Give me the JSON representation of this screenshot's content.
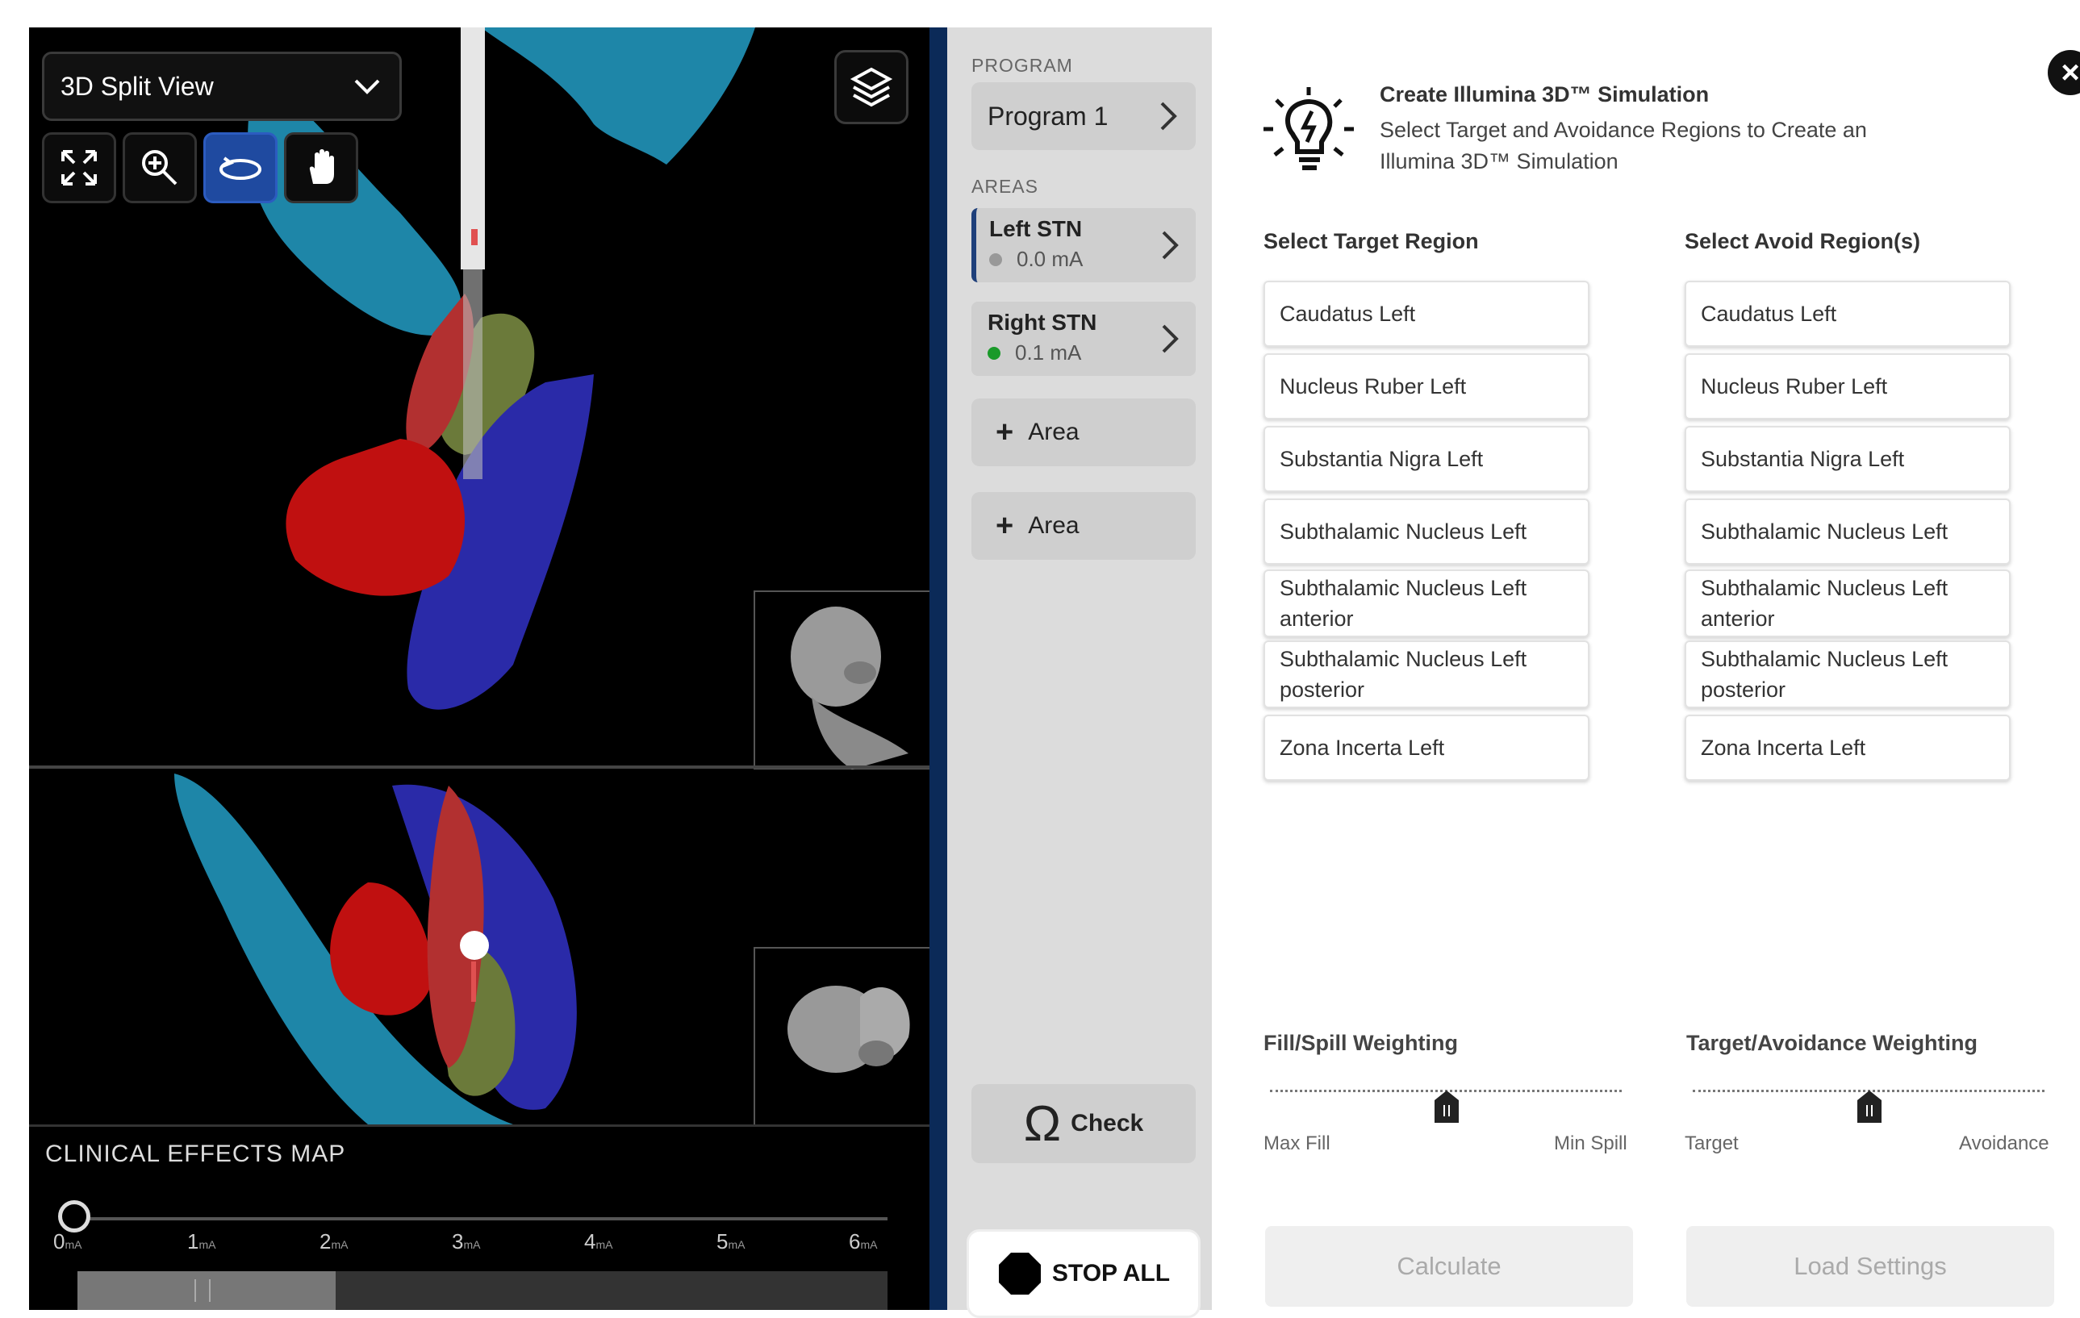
{
  "viewer": {
    "view_mode": "3D Split View",
    "tools": [
      {
        "icon": "fit-to-screen-icon",
        "active": false
      },
      {
        "icon": "zoom-icon",
        "active": false
      },
      {
        "icon": "rotate-icon",
        "active": true
      },
      {
        "icon": "pan-hand-icon",
        "active": false
      }
    ],
    "layers_icon": "layers-icon",
    "clinical_effects": {
      "title": "CLINICAL EFFECTS MAP",
      "ticks": [
        {
          "n": "0",
          "u": "mA"
        },
        {
          "n": "1",
          "u": "mA"
        },
        {
          "n": "2",
          "u": "mA"
        },
        {
          "n": "3",
          "u": "mA"
        },
        {
          "n": "4",
          "u": "mA"
        },
        {
          "n": "5",
          "u": "mA"
        },
        {
          "n": "6",
          "u": "mA"
        }
      ],
      "slider_value_mA": 0
    },
    "colors": {
      "structure_red": "#c01010",
      "structure_blue": "#2a2aa8",
      "structure_teal": "#1e86a8",
      "structure_green": "#6b7a3a"
    }
  },
  "sidebar": {
    "program_label": "PROGRAM",
    "program_name": "Program 1",
    "areas_label": "AREAS",
    "areas": [
      {
        "name": "Left STN",
        "value": "0.0 mA",
        "status_color": "#999999",
        "selected": true
      },
      {
        "name": "Right STN",
        "value": "0.1 mA",
        "status_color": "#1a9a2a",
        "selected": false
      }
    ],
    "add_area_buttons": [
      "Area",
      "Area"
    ],
    "check_label": "Check",
    "stop_label": "STOP ALL"
  },
  "panel": {
    "title": "Create Illumina 3D™ Simulation",
    "subtitle": "Select Target and Avoidance Regions to Create an Illumina 3D™ Simulation",
    "target_header": "Select Target Region",
    "avoid_header": "Select Avoid Region(s)",
    "target_regions": [
      "Caudatus Left",
      "Nucleus Ruber Left",
      "Substantia Nigra Left",
      "Subthalamic Nucleus Left",
      "Subthalamic Nucleus Left anterior",
      "Subthalamic Nucleus Left posterior",
      "Zona Incerta Left"
    ],
    "avoid_regions": [
      "Caudatus Left",
      "Nucleus Ruber Left",
      "Substantia Nigra Left",
      "Subthalamic Nucleus Left",
      "Subthalamic Nucleus Left anterior",
      "Subthalamic Nucleus Left posterior",
      "Zona Incerta Left"
    ],
    "fill_spill": {
      "label": "Fill/Spill Weighting",
      "min_label": "Max Fill",
      "max_label": "Min Spill",
      "value": 0.5
    },
    "target_avoid": {
      "label": "Target/Avoidance Weighting",
      "min_label": "Target",
      "max_label": "Avoidance",
      "value": 0.5
    },
    "calculate_label": "Calculate",
    "load_label": "Load Settings"
  }
}
